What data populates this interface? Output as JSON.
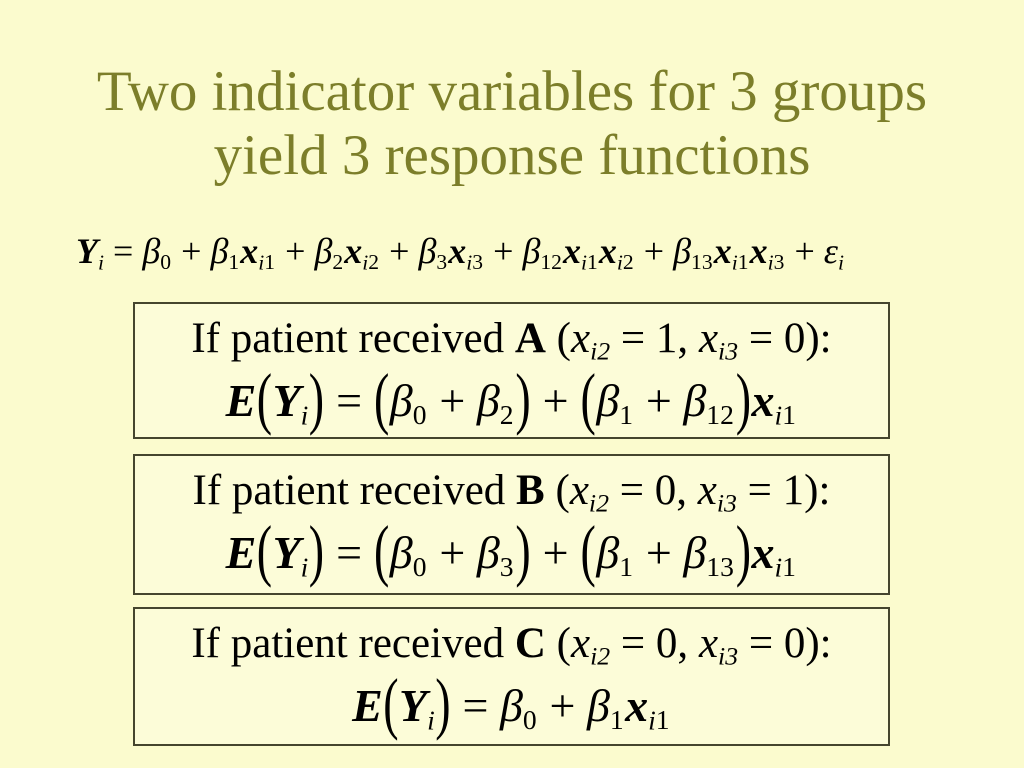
{
  "slide": {
    "colors": {
      "background": "#fbfbce",
      "title": "#7c7e2a",
      "box_border": "#45452e",
      "box_background": "#fcfcd8",
      "text": "#000000"
    },
    "title": {
      "line1": "Two indicator variables for 3 groups",
      "line2": "yield 3 response functions"
    },
    "main_equation": {
      "text": "Yi = β0 + β1xi1 + β2xi2 + β3xi3 + β12xi1xi2 + β13xi1xi3 + εi",
      "tokens": [
        {
          "t": "Y",
          "s": "bi"
        },
        {
          "t": "i",
          "s": "sub"
        },
        {
          "t": " = ",
          "s": "t"
        },
        {
          "t": "β",
          "s": "g"
        },
        {
          "t": "0",
          "s": "subn"
        },
        {
          "t": " + ",
          "s": "t"
        },
        {
          "t": "β",
          "s": "g"
        },
        {
          "t": "1",
          "s": "subn"
        },
        {
          "t": "x",
          "s": "bi"
        },
        {
          "t": "i",
          "s": "sub"
        },
        {
          "t": "1",
          "s": "subn"
        },
        {
          "t": " + ",
          "s": "t"
        },
        {
          "t": "β",
          "s": "g"
        },
        {
          "t": "2",
          "s": "subn"
        },
        {
          "t": "x",
          "s": "bi"
        },
        {
          "t": "i",
          "s": "sub"
        },
        {
          "t": "2",
          "s": "subn"
        },
        {
          "t": " + ",
          "s": "t"
        },
        {
          "t": "β",
          "s": "g"
        },
        {
          "t": "3",
          "s": "subn"
        },
        {
          "t": "x",
          "s": "bi"
        },
        {
          "t": "i",
          "s": "sub"
        },
        {
          "t": "3",
          "s": "subn"
        },
        {
          "t": " + ",
          "s": "t"
        },
        {
          "t": "β",
          "s": "g"
        },
        {
          "t": "12",
          "s": "subn"
        },
        {
          "t": "x",
          "s": "bi"
        },
        {
          "t": "i",
          "s": "sub"
        },
        {
          "t": "1",
          "s": "subn"
        },
        {
          "t": "x",
          "s": "bi"
        },
        {
          "t": "i",
          "s": "sub"
        },
        {
          "t": "2",
          "s": "subn"
        },
        {
          "t": " + ",
          "s": "t"
        },
        {
          "t": "β",
          "s": "g"
        },
        {
          "t": "13",
          "s": "subn"
        },
        {
          "t": "x",
          "s": "bi"
        },
        {
          "t": "i",
          "s": "sub"
        },
        {
          "t": "1",
          "s": "subn"
        },
        {
          "t": "x",
          "s": "bi"
        },
        {
          "t": "i",
          "s": "sub"
        },
        {
          "t": "3",
          "s": "subn"
        },
        {
          "t": " + ",
          "s": "t"
        },
        {
          "t": "ε",
          "s": "i"
        },
        {
          "t": "i",
          "s": "sub"
        }
      ]
    },
    "boxes": [
      {
        "group": "A",
        "condition_text": "If patient received A (xi2 = 1, xi3 = 0):",
        "condition_tokens": [
          {
            "t": "If patient received ",
            "s": "t"
          },
          {
            "t": "A",
            "s": "b"
          },
          {
            "t": " (",
            "s": "t"
          },
          {
            "t": "x",
            "s": "i"
          },
          {
            "t": "i2",
            "s": "sub"
          },
          {
            "t": " = 1, ",
            "s": "t"
          },
          {
            "t": "x",
            "s": "i"
          },
          {
            "t": "i3",
            "s": "sub"
          },
          {
            "t": " = 0):",
            "s": "t"
          }
        ],
        "equation_text": "E(Yi) = (β0 + β2) + (β1 + β12)xi1",
        "equation_tokens": [
          {
            "t": "E",
            "s": "bi"
          },
          {
            "t": "(",
            "s": "bp"
          },
          {
            "t": "Y",
            "s": "bi"
          },
          {
            "t": "i",
            "s": "sub"
          },
          {
            "t": ")",
            "s": "bp"
          },
          {
            "t": " = ",
            "s": "t"
          },
          {
            "t": "(",
            "s": "bp"
          },
          {
            "t": "β",
            "s": "g"
          },
          {
            "t": "0",
            "s": "subn"
          },
          {
            "t": " + ",
            "s": "t"
          },
          {
            "t": "β",
            "s": "g"
          },
          {
            "t": "2",
            "s": "subn"
          },
          {
            "t": ")",
            "s": "bp"
          },
          {
            "t": " + ",
            "s": "t"
          },
          {
            "t": "(",
            "s": "bp"
          },
          {
            "t": "β",
            "s": "g"
          },
          {
            "t": "1",
            "s": "subn"
          },
          {
            "t": " + ",
            "s": "t"
          },
          {
            "t": "β",
            "s": "g"
          },
          {
            "t": "12",
            "s": "subn"
          },
          {
            "t": ")",
            "s": "bp"
          },
          {
            "t": "x",
            "s": "bi"
          },
          {
            "t": "i",
            "s": "sub"
          },
          {
            "t": "1",
            "s": "subn"
          }
        ]
      },
      {
        "group": "B",
        "condition_text": "If patient received B (xi2 = 0, xi3 = 1):",
        "condition_tokens": [
          {
            "t": "If patient received ",
            "s": "t"
          },
          {
            "t": "B",
            "s": "b"
          },
          {
            "t": " (",
            "s": "t"
          },
          {
            "t": "x",
            "s": "i"
          },
          {
            "t": "i2",
            "s": "sub"
          },
          {
            "t": " = 0, ",
            "s": "t"
          },
          {
            "t": "x",
            "s": "i"
          },
          {
            "t": "i3",
            "s": "sub"
          },
          {
            "t": " = 1):",
            "s": "t"
          }
        ],
        "equation_text": "E(Yi) = (β0 + β3) + (β1 + β13)xi1",
        "equation_tokens": [
          {
            "t": "E",
            "s": "bi"
          },
          {
            "t": "(",
            "s": "bp"
          },
          {
            "t": "Y",
            "s": "bi"
          },
          {
            "t": "i",
            "s": "sub"
          },
          {
            "t": ")",
            "s": "bp"
          },
          {
            "t": " = ",
            "s": "t"
          },
          {
            "t": "(",
            "s": "bp"
          },
          {
            "t": "β",
            "s": "g"
          },
          {
            "t": "0",
            "s": "subn"
          },
          {
            "t": " + ",
            "s": "t"
          },
          {
            "t": "β",
            "s": "g"
          },
          {
            "t": "3",
            "s": "subn"
          },
          {
            "t": ")",
            "s": "bp"
          },
          {
            "t": " + ",
            "s": "t"
          },
          {
            "t": "(",
            "s": "bp"
          },
          {
            "t": "β",
            "s": "g"
          },
          {
            "t": "1",
            "s": "subn"
          },
          {
            "t": " + ",
            "s": "t"
          },
          {
            "t": "β",
            "s": "g"
          },
          {
            "t": "13",
            "s": "subn"
          },
          {
            "t": ")",
            "s": "bp"
          },
          {
            "t": "x",
            "s": "bi"
          },
          {
            "t": "i",
            "s": "sub"
          },
          {
            "t": "1",
            "s": "subn"
          }
        ]
      },
      {
        "group": "C",
        "condition_text": "If patient received C (xi2 = 0, xi3 = 0):",
        "condition_tokens": [
          {
            "t": "If patient received ",
            "s": "t"
          },
          {
            "t": "C",
            "s": "b"
          },
          {
            "t": " (",
            "s": "t"
          },
          {
            "t": "x",
            "s": "i"
          },
          {
            "t": "i2",
            "s": "sub"
          },
          {
            "t": " = 0, ",
            "s": "t"
          },
          {
            "t": "x",
            "s": "i"
          },
          {
            "t": "i3",
            "s": "sub"
          },
          {
            "t": " = 0):",
            "s": "t"
          }
        ],
        "equation_text": "E(Yi) = β0 + β1xi1",
        "equation_tokens": [
          {
            "t": "E",
            "s": "bi"
          },
          {
            "t": "(",
            "s": "bp"
          },
          {
            "t": "Y",
            "s": "bi"
          },
          {
            "t": "i",
            "s": "sub"
          },
          {
            "t": ")",
            "s": "bp"
          },
          {
            "t": " = ",
            "s": "t"
          },
          {
            "t": "β",
            "s": "g"
          },
          {
            "t": "0",
            "s": "subn"
          },
          {
            "t": " + ",
            "s": "t"
          },
          {
            "t": "β",
            "s": "g"
          },
          {
            "t": "1",
            "s": "subn"
          },
          {
            "t": "x",
            "s": "bi"
          },
          {
            "t": "i",
            "s": "sub"
          },
          {
            "t": "1",
            "s": "subn"
          }
        ]
      }
    ]
  }
}
